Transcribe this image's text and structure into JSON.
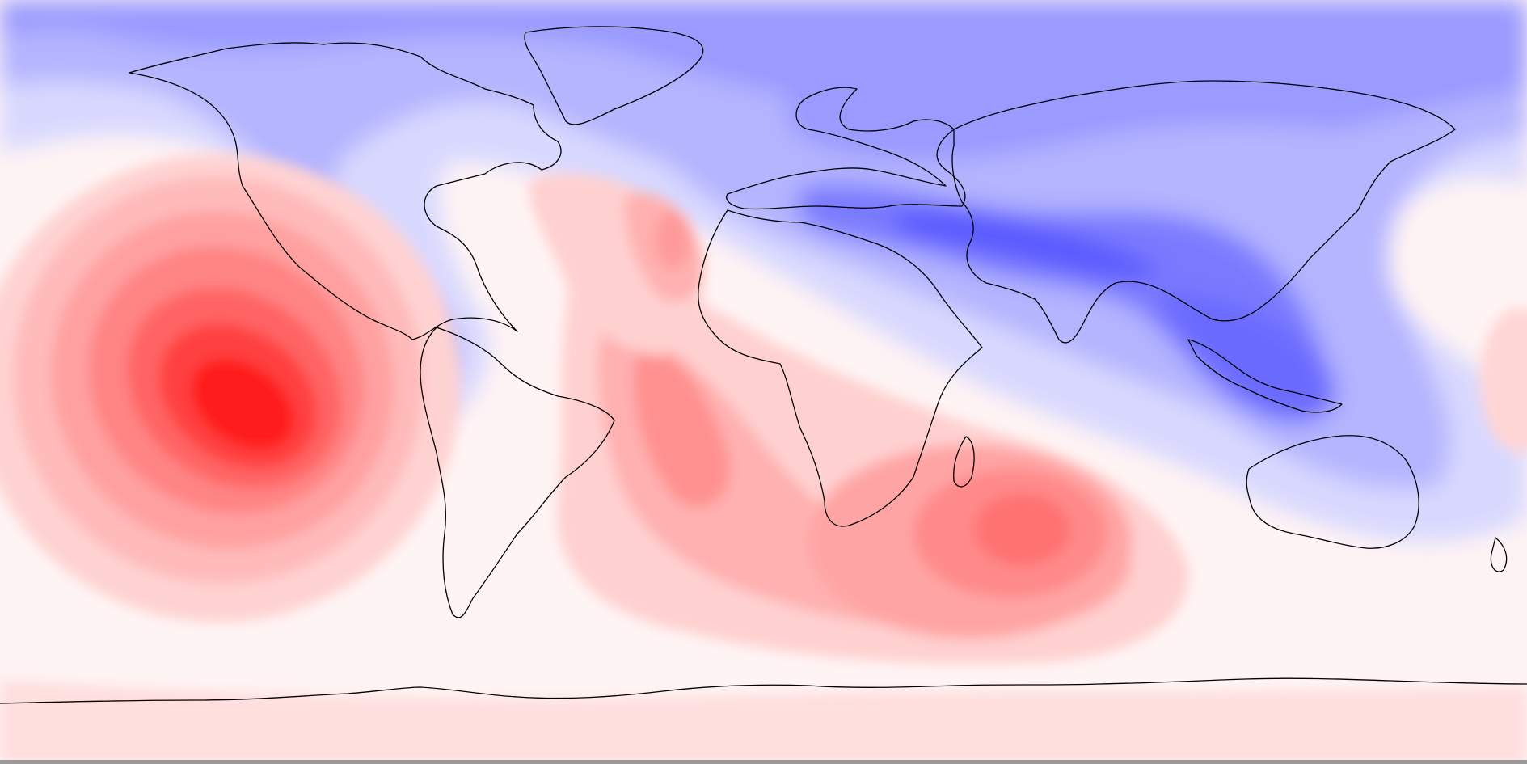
{
  "map": {
    "projection": "equirectangular",
    "view": "global",
    "field_type": "diverging anomaly field",
    "colors": {
      "strong_positive": "#ff0000",
      "positive": "#ff8080",
      "weak_positive": "#ffd6d6",
      "neutral": "#ffffff",
      "weak_negative": "#dadaff",
      "negative": "#9a9aff",
      "strong_negative": "#4b4bff",
      "coastline": "#000000",
      "bottom_strip": "#9a9a9a"
    },
    "features": [
      {
        "name": "south-pacific-maximum",
        "sign": "positive",
        "intensity": 1.0
      },
      {
        "name": "south-indian-ocean-maximum",
        "sign": "positive",
        "intensity": 0.55
      },
      {
        "name": "south-atlantic-maximum",
        "sign": "positive",
        "intensity": 0.45
      },
      {
        "name": "north-atlantic-canary-maximum",
        "sign": "positive",
        "intensity": 0.45
      },
      {
        "name": "eurasia-himalaya-minimum",
        "sign": "negative",
        "intensity": 0.85
      },
      {
        "name": "maritime-continent-minimum",
        "sign": "negative",
        "intensity": 0.75
      },
      {
        "name": "arctic-minimum",
        "sign": "negative",
        "intensity": 0.5
      }
    ]
  }
}
